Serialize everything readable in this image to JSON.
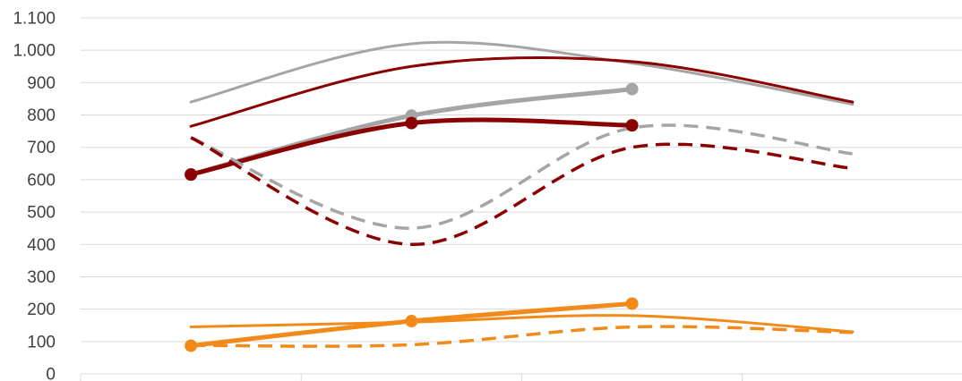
{
  "chart_data": {
    "type": "line",
    "title": "",
    "xlabel": "",
    "ylabel": "",
    "ylim": [
      0,
      1100
    ],
    "yticks": [
      0,
      100,
      200,
      300,
      400,
      500,
      600,
      700,
      800,
      900,
      1000,
      1100
    ],
    "ytick_labels": [
      "0",
      "100",
      "200",
      "300",
      "400",
      "500",
      "600",
      "700",
      "800",
      "900",
      "1.000",
      "1.100"
    ],
    "x_categories": 4,
    "grid": true,
    "legend": "none",
    "series": [
      {
        "color": "#a5a5a5",
        "style": "thin",
        "smooth": true,
        "x": [
          0.5,
          1.5,
          2.5,
          3.5
        ],
        "values": [
          840,
          1020,
          960,
          833
        ]
      },
      {
        "color": "#8b0000",
        "style": "thin",
        "smooth": true,
        "x": [
          0.5,
          1.5,
          2.5,
          3.5
        ],
        "values": [
          765,
          950,
          965,
          840
        ]
      },
      {
        "color": "#a5a5a5",
        "style": "thick-markers",
        "smooth": true,
        "x": [
          0.5,
          1.5,
          2.5
        ],
        "values": [
          616,
          798,
          880
        ]
      },
      {
        "color": "#8b0000",
        "style": "thick-markers",
        "smooth": true,
        "x": [
          0.5,
          1.5,
          2.5
        ],
        "values": [
          616,
          775,
          768
        ]
      },
      {
        "color": "#a5a5a5",
        "style": "dashed",
        "smooth": true,
        "x": [
          0.5,
          1.5,
          2.5,
          3.5
        ],
        "values": [
          730,
          450,
          760,
          680
        ]
      },
      {
        "color": "#8b0000",
        "style": "dashed",
        "smooth": true,
        "x": [
          0.5,
          1.5,
          2.5,
          3.5
        ],
        "values": [
          730,
          400,
          700,
          635
        ]
      },
      {
        "color": "#f28a1a",
        "style": "thin",
        "smooth": true,
        "x": [
          0.5,
          1.5,
          2.5,
          3.5
        ],
        "values": [
          145,
          160,
          180,
          130
        ]
      },
      {
        "color": "#f28a1a",
        "style": "thick-markers",
        "smooth": true,
        "x": [
          0.5,
          1.5,
          2.5
        ],
        "values": [
          87,
          163,
          217
        ]
      },
      {
        "color": "#f28a1a",
        "style": "dashed",
        "smooth": true,
        "x": [
          0.5,
          1.5,
          2.5,
          3.5
        ],
        "values": [
          88,
          90,
          145,
          128
        ]
      }
    ]
  }
}
